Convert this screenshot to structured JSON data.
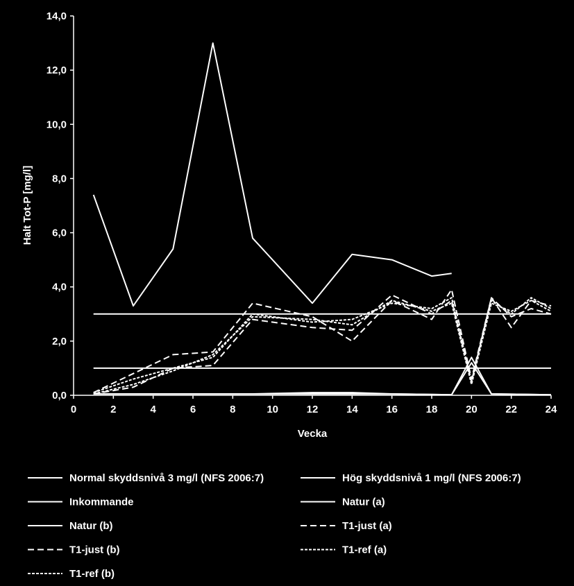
{
  "chart_data": {
    "type": "line",
    "xlabel": "Vecka",
    "ylabel": "Halt Tot-P [mg/l]",
    "xlim": [
      0,
      24
    ],
    "ylim": [
      0,
      14
    ],
    "x_ticks": [
      "0",
      "2",
      "4",
      "6",
      "8",
      "10",
      "12",
      "14",
      "16",
      "18",
      "20",
      "22",
      "24"
    ],
    "y_ticks": [
      "0,0",
      "2,0",
      "4,0",
      "6,0",
      "8,0",
      "10,0",
      "12,0",
      "14,0"
    ],
    "grid": false,
    "legend_position": "bottom",
    "line_color": "#ffffff",
    "series": [
      {
        "name": "Normal skyddsnivå 3 mg/l (NFS 2006:7)",
        "dash": "solid",
        "points": [
          [
            1,
            3.0
          ],
          [
            24,
            3.0
          ]
        ]
      },
      {
        "name": "Hög skyddsnivå 1 mg/l (NFS 2006:7)",
        "dash": "solid",
        "points": [
          [
            1,
            1.0
          ],
          [
            24,
            1.0
          ]
        ]
      },
      {
        "name": "Inkommande",
        "dash": "solid",
        "points": [
          [
            1,
            7.4
          ],
          [
            3,
            3.3
          ],
          [
            5,
            5.4
          ],
          [
            7,
            13.0
          ],
          [
            9,
            5.8
          ],
          [
            12,
            3.4
          ],
          [
            14,
            5.2
          ],
          [
            16,
            5.0
          ],
          [
            18,
            4.4
          ],
          [
            19,
            4.5
          ]
        ]
      },
      {
        "name": "Natur (a)",
        "dash": "solid",
        "points": [
          [
            1,
            0.05
          ],
          [
            5,
            0.05
          ],
          [
            9,
            0.05
          ],
          [
            12,
            0.1
          ],
          [
            14,
            0.1
          ],
          [
            16,
            0.05
          ],
          [
            19,
            0.02
          ],
          [
            20,
            1.4
          ],
          [
            21,
            0.05
          ],
          [
            24,
            0.02
          ]
        ]
      },
      {
        "name": "Natur (b)",
        "dash": "solid",
        "points": [
          [
            1,
            0.05
          ],
          [
            5,
            0.05
          ],
          [
            9,
            0.05
          ],
          [
            12,
            0.05
          ],
          [
            16,
            0.05
          ],
          [
            19,
            0.02
          ],
          [
            20,
            1.2
          ],
          [
            21,
            0.05
          ],
          [
            24,
            0.02
          ]
        ]
      },
      {
        "name": "T1-just (a)",
        "dash": "dashed",
        "points": [
          [
            1,
            0.1
          ],
          [
            3,
            0.8
          ],
          [
            5,
            1.5
          ],
          [
            7,
            1.6
          ],
          [
            9,
            3.4
          ],
          [
            12,
            2.9
          ],
          [
            14,
            2.0
          ],
          [
            16,
            3.5
          ],
          [
            18,
            2.8
          ],
          [
            19,
            3.9
          ],
          [
            20,
            0.6
          ],
          [
            21,
            3.6
          ],
          [
            22,
            2.5
          ],
          [
            23,
            3.5
          ],
          [
            24,
            3.3
          ]
        ]
      },
      {
        "name": "T1-just (b)",
        "dash": "dashed",
        "points": [
          [
            1,
            0.05
          ],
          [
            3,
            0.3
          ],
          [
            5,
            1.0
          ],
          [
            7,
            1.1
          ],
          [
            9,
            2.8
          ],
          [
            12,
            2.5
          ],
          [
            14,
            2.4
          ],
          [
            16,
            3.7
          ],
          [
            18,
            3.0
          ],
          [
            19,
            3.5
          ],
          [
            20,
            0.5
          ],
          [
            21,
            3.6
          ],
          [
            22,
            2.9
          ],
          [
            23,
            3.2
          ],
          [
            24,
            3.0
          ]
        ]
      },
      {
        "name": "T1-ref (a)",
        "dash": "short-dashed",
        "points": [
          [
            1,
            0.1
          ],
          [
            3,
            0.6
          ],
          [
            5,
            1.0
          ],
          [
            7,
            1.4
          ],
          [
            9,
            3.0
          ],
          [
            12,
            2.7
          ],
          [
            14,
            2.8
          ],
          [
            16,
            3.4
          ],
          [
            18,
            3.2
          ],
          [
            19,
            3.6
          ],
          [
            20,
            0.5
          ],
          [
            21,
            3.5
          ],
          [
            22,
            3.0
          ],
          [
            23,
            3.6
          ],
          [
            24,
            3.2
          ]
        ]
      },
      {
        "name": "T1-ref (b)",
        "dash": "short-dashed",
        "points": [
          [
            1,
            0.05
          ],
          [
            3,
            0.4
          ],
          [
            5,
            0.9
          ],
          [
            7,
            1.5
          ],
          [
            9,
            2.9
          ],
          [
            12,
            2.8
          ],
          [
            14,
            2.6
          ],
          [
            16,
            3.5
          ],
          [
            18,
            3.1
          ],
          [
            19,
            3.4
          ],
          [
            20,
            0.4
          ],
          [
            21,
            3.4
          ],
          [
            22,
            3.1
          ],
          [
            23,
            3.5
          ],
          [
            24,
            3.1
          ]
        ]
      }
    ]
  }
}
